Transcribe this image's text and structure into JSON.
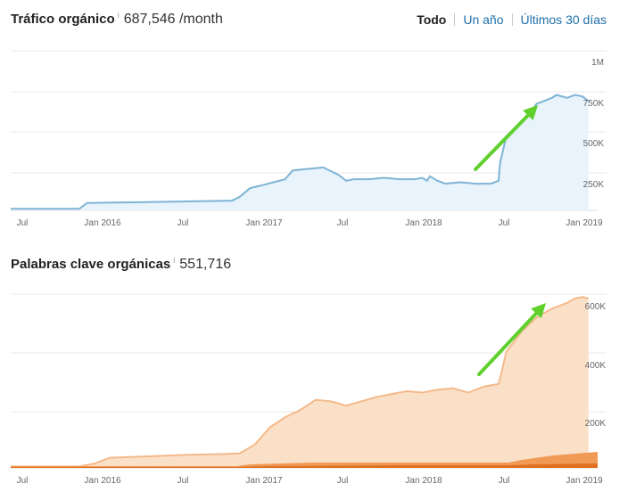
{
  "traffic_panel": {
    "title": "Tráfico orgánico",
    "info": "i",
    "value": "687,546 /month"
  },
  "range": {
    "all": "Todo",
    "year": "Un año",
    "days30": "Últimos 30 días"
  },
  "keywords_panel": {
    "title": "Palabras clave orgánicas",
    "info": "i",
    "value": "551,716"
  },
  "colors": {
    "traffic_line": "#7fb3d5",
    "traffic_fill": "#e8f3fc",
    "keywords_fill": "#fbe0c8",
    "keywords_line": "#f4b98a",
    "keywords_bar_light": "#f09a55",
    "keywords_bar_dark": "#e0701f",
    "arrow": "#5fd02c"
  },
  "chart_data": [
    {
      "type": "area",
      "name": "traffic",
      "x_tick_labels": [
        "Jul",
        "Jan 2016",
        "Jul",
        "Jan 2017",
        "Jul",
        "Jan 2018",
        "Jul",
        "Jan 2019"
      ],
      "y_tick_labels": [
        "1M",
        "750K",
        "500K",
        "250K"
      ],
      "ylim": [
        0,
        1000000
      ],
      "x_range": [
        2015.35,
        2019.2
      ],
      "x": [
        2015.35,
        2015.8,
        2015.85,
        2016.2,
        2016.5,
        2016.8,
        2016.85,
        2016.92,
        2017.0,
        2017.15,
        2017.2,
        2017.3,
        2017.4,
        2017.5,
        2017.55,
        2017.6,
        2017.7,
        2017.8,
        2017.9,
        2018.0,
        2018.05,
        2018.08,
        2018.1,
        2018.15,
        2018.2,
        2018.3,
        2018.4,
        2018.5,
        2018.55,
        2018.56,
        2018.6,
        2018.65,
        2018.7,
        2018.75,
        2018.8,
        2018.85,
        2018.9,
        2018.93,
        2019.0,
        2019.05,
        2019.1,
        2019.14
      ],
      "values": [
        10000,
        10000,
        50000,
        55000,
        60000,
        65000,
        90000,
        150000,
        170000,
        210000,
        270000,
        280000,
        290000,
        240000,
        200000,
        210000,
        210000,
        220000,
        210000,
        210000,
        220000,
        200000,
        230000,
        200000,
        180000,
        190000,
        180000,
        180000,
        200000,
        320000,
        500000,
        550000,
        600000,
        650000,
        720000,
        740000,
        760000,
        780000,
        760000,
        780000,
        770000,
        740000
      ]
    },
    {
      "type": "area",
      "name": "keywords",
      "x_tick_labels": [
        "Jul",
        "Jan 2016",
        "Jul",
        "Jan 2017",
        "Jul",
        "Jan 2018",
        "Jul",
        "Jan 2019"
      ],
      "y_tick_labels": [
        "600K",
        "400K",
        "200K"
      ],
      "ylim": [
        0,
        600000
      ],
      "x_range": [
        2015.35,
        2019.2
      ],
      "x": [
        2015.35,
        2015.8,
        2015.9,
        2016.0,
        2016.5,
        2016.75,
        2016.85,
        2016.95,
        2017.05,
        2017.15,
        2017.25,
        2017.35,
        2017.45,
        2017.55,
        2017.65,
        2017.75,
        2017.85,
        2017.95,
        2018.05,
        2018.15,
        2018.25,
        2018.35,
        2018.45,
        2018.5,
        2018.55,
        2018.57,
        2018.6,
        2018.7,
        2018.8,
        2018.9,
        2019.0,
        2019.05,
        2019.1,
        2019.14
      ],
      "values": [
        5000,
        5000,
        15000,
        35000,
        45000,
        48000,
        50000,
        80000,
        140000,
        175000,
        200000,
        235000,
        230000,
        215000,
        230000,
        245000,
        255000,
        265000,
        260000,
        270000,
        275000,
        260000,
        280000,
        285000,
        290000,
        330000,
        400000,
        470000,
        520000,
        550000,
        570000,
        585000,
        590000,
        585000
      ]
    }
  ]
}
